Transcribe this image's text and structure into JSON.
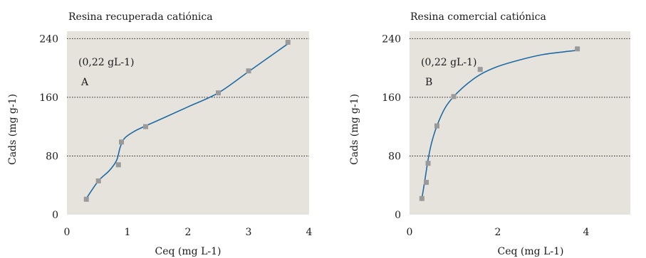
{
  "colors": {
    "plot_bg": "#e6e3dd",
    "grid": "#222222",
    "line": "#1f6aa5",
    "marker": "#9a9a9a",
    "text": "#1a1a1a"
  },
  "chart_data": [
    {
      "type": "scatter",
      "title": "Resina recuperada catiónica",
      "xlabel": "Ceq (mg L-1)",
      "ylabel": "Cads (mg g-1)",
      "xlim": [
        0,
        4
      ],
      "ylim": [
        0,
        250
      ],
      "xticks": [
        0,
        1,
        2,
        3,
        4
      ],
      "yticks": [
        0,
        80,
        160,
        240
      ],
      "grid": "horizontal dotted",
      "annotations": [
        "(0,22 gL-1)",
        "A"
      ],
      "points": {
        "x": [
          0.32,
          0.52,
          0.85,
          0.9,
          1.3,
          2.5,
          3.0,
          3.65
        ],
        "y": [
          21,
          46,
          68,
          99,
          120,
          166,
          196,
          235
        ]
      },
      "fit_curve": {
        "x": [
          0.32,
          0.52,
          0.7,
          0.82,
          0.88,
          0.95,
          1.1,
          1.3,
          1.6,
          2.0,
          2.5,
          3.0,
          3.65
        ],
        "y": [
          22,
          46,
          60,
          74,
          92,
          104,
          113,
          121,
          132,
          147,
          166,
          195,
          233
        ]
      }
    },
    {
      "type": "scatter",
      "title": "Resina comercial catiónica",
      "xlabel": "Ceq (mg L-1)",
      "ylabel": "Cads (mg g-1)",
      "xlim": [
        0,
        5
      ],
      "ylim": [
        0,
        250
      ],
      "xticks": [
        0,
        2,
        4
      ],
      "yticks": [
        0,
        80,
        160,
        240
      ],
      "grid": "horizontal dotted",
      "annotations": [
        "(0,22 gL-1)",
        "B"
      ],
      "points": {
        "x": [
          0.28,
          0.38,
          0.42,
          0.62,
          1.0,
          1.6,
          3.8
        ],
        "y": [
          22,
          44,
          70,
          121,
          161,
          198,
          226
        ]
      },
      "fit_curve": {
        "x": [
          0.28,
          0.35,
          0.42,
          0.5,
          0.62,
          0.8,
          1.0,
          1.3,
          1.6,
          2.0,
          2.5,
          3.0,
          3.5,
          3.8
        ],
        "y": [
          22,
          48,
          75,
          98,
          121,
          145,
          161,
          178,
          191,
          202,
          211,
          218,
          222,
          224
        ]
      }
    }
  ]
}
